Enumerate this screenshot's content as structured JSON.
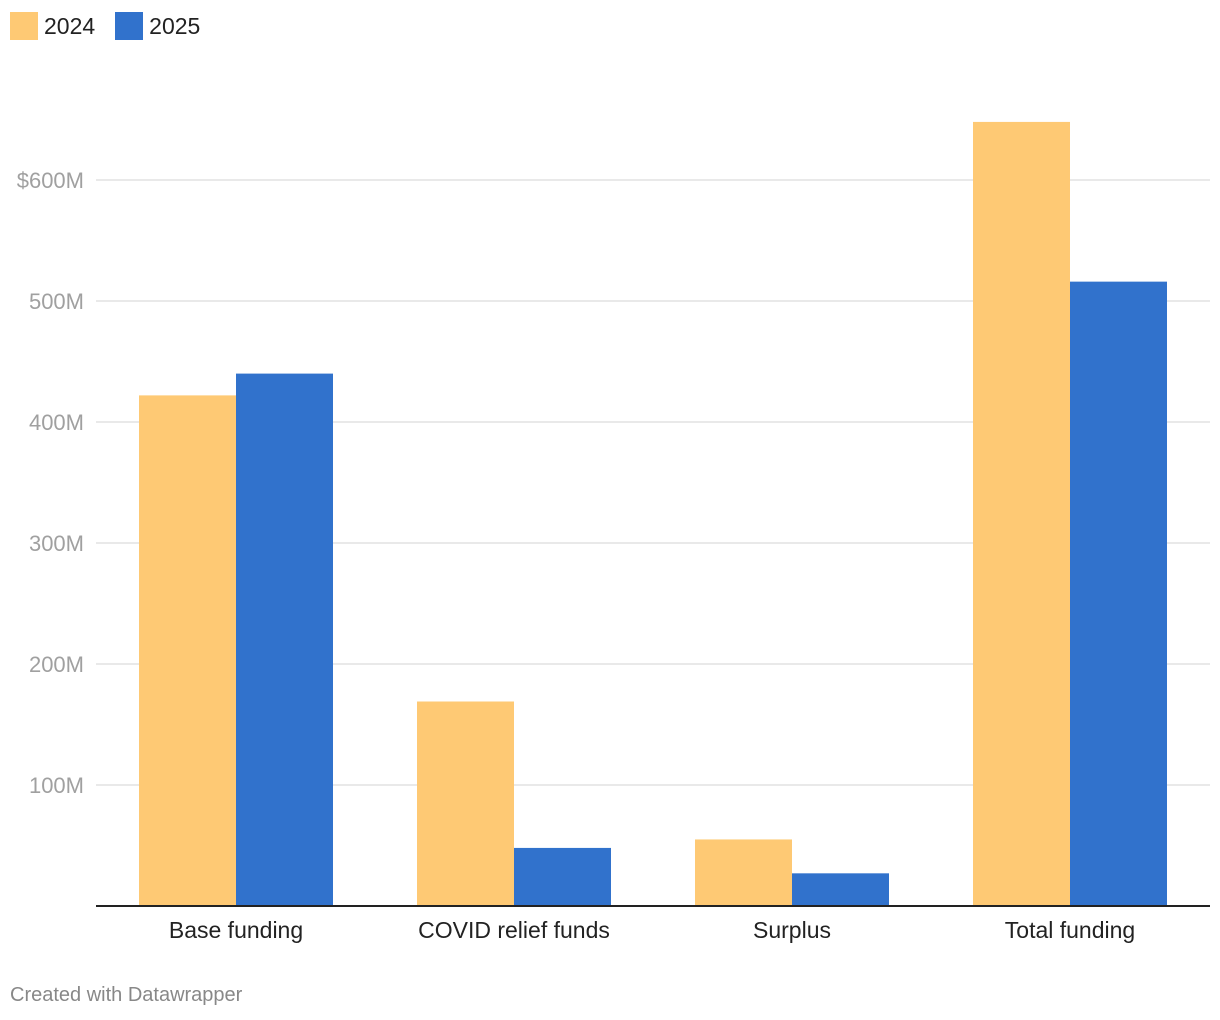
{
  "chart_data": {
    "type": "bar",
    "categories": [
      "Base funding",
      "COVID relief funds",
      "Surplus",
      "Total funding"
    ],
    "series": [
      {
        "name": "2024",
        "color": "#fec974",
        "values": [
          422,
          169,
          55,
          648
        ]
      },
      {
        "name": "2025",
        "color": "#3172cc",
        "values": [
          440,
          48,
          27,
          516
        ]
      }
    ],
    "y_ticks": [
      {
        "value": 100,
        "label": "100M"
      },
      {
        "value": 200,
        "label": "200M"
      },
      {
        "value": 300,
        "label": "300M"
      },
      {
        "value": 400,
        "label": "400M"
      },
      {
        "value": 500,
        "label": "500M"
      },
      {
        "value": 600,
        "label": "$600M"
      }
    ],
    "ylim": [
      0,
      650
    ],
    "grid": true,
    "legend_position": "top-left",
    "title": "",
    "xlabel": "",
    "ylabel": ""
  },
  "footer": {
    "credit": "Created with Datawrapper"
  }
}
